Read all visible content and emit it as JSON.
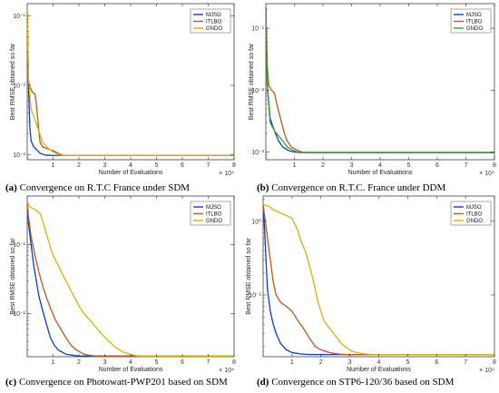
{
  "chart_data": [
    {
      "type": "line",
      "caption_tag": "(a)",
      "caption": "Convergence on R.T.C France under SDM",
      "xlabel": "Number of Evaluations",
      "ylabel": "Best RMSE obtained so far",
      "x_multiplier": "× 10⁴",
      "xlim": [
        0,
        8
      ],
      "xticks": [
        "1",
        "2",
        "3",
        "4",
        "5",
        "6",
        "7",
        "8"
      ],
      "ylim": [
        0.00085,
        0.15
      ],
      "yscale": "log",
      "yticks": [
        {
          "value": 0.001,
          "label": "10⁻³"
        },
        {
          "value": 0.01,
          "label": "10⁻²"
        },
        {
          "value": 0.1,
          "label": "10⁻¹"
        }
      ],
      "grid": false,
      "legend_position": "top-right",
      "series": [
        {
          "name": "MJSO",
          "color": "#0c3ccc",
          "points": [
            [
              0,
              0.12
            ],
            [
              0.05,
              0.01
            ],
            [
              0.1,
              0.0025
            ],
            [
              0.15,
              0.0016
            ],
            [
              0.25,
              0.0013
            ],
            [
              0.35,
              0.0012
            ],
            [
              0.5,
              0.00105
            ],
            [
              0.7,
              0.00099
            ],
            [
              1.0,
              0.00098
            ],
            [
              8,
              0.00098
            ]
          ]
        },
        {
          "name": "ITLBO",
          "color": "#b55a1c",
          "points": [
            [
              0,
              0.12
            ],
            [
              0.05,
              0.012
            ],
            [
              0.1,
              0.0095
            ],
            [
              0.2,
              0.008
            ],
            [
              0.3,
              0.0075
            ],
            [
              0.35,
              0.0055
            ],
            [
              0.4,
              0.0035
            ],
            [
              0.45,
              0.0022
            ],
            [
              0.5,
              0.0015
            ],
            [
              0.6,
              0.0013
            ],
            [
              0.7,
              0.00125
            ],
            [
              0.85,
              0.0012
            ],
            [
              1.0,
              0.00115
            ],
            [
              1.2,
              0.00105
            ],
            [
              1.4,
              0.00098
            ],
            [
              8,
              0.00098
            ]
          ]
        },
        {
          "name": "GNDO",
          "color": "#d6b00d",
          "points": [
            [
              0,
              0.12
            ],
            [
              0.05,
              0.012
            ],
            [
              0.15,
              0.0045
            ],
            [
              0.3,
              0.0032
            ],
            [
              0.45,
              0.0022
            ],
            [
              0.6,
              0.0015
            ],
            [
              0.8,
              0.00125
            ],
            [
              1.0,
              0.0011
            ],
            [
              1.3,
              0.00098
            ],
            [
              8,
              0.00098
            ]
          ]
        }
      ]
    },
    {
      "type": "line",
      "caption_tag": "(b)",
      "caption": "Convergence on R.T.C. France under DDM",
      "xlabel": "Number of Evaluations",
      "ylabel": "Best RMSE obtained so far",
      "x_multiplier": "× 10⁴",
      "xlim": [
        0,
        8
      ],
      "xticks": [
        "1",
        "2",
        "3",
        "4",
        "5",
        "6",
        "7",
        "8"
      ],
      "ylim": [
        0.00075,
        0.25
      ],
      "yscale": "log",
      "yticks": [
        {
          "value": 0.001,
          "label": "10⁻³"
        },
        {
          "value": 0.01,
          "label": "10⁻²"
        },
        {
          "value": 0.1,
          "label": "10⁻¹"
        }
      ],
      "grid": false,
      "legend_position": "top-right",
      "series": [
        {
          "name": "MJSO",
          "color": "#0c3ccc",
          "points": [
            [
              0,
              0.22
            ],
            [
              0.05,
              0.012
            ],
            [
              0.15,
              0.0035
            ],
            [
              0.3,
              0.0022
            ],
            [
              0.45,
              0.0015
            ],
            [
              0.6,
              0.0012
            ],
            [
              0.8,
              0.00105
            ],
            [
              1.0,
              0.001
            ],
            [
              1.2,
              0.00098
            ],
            [
              8,
              0.00098
            ]
          ]
        },
        {
          "name": "ITLBO",
          "color": "#b55a1c",
          "points": [
            [
              0,
              0.22
            ],
            [
              0.05,
              0.025
            ],
            [
              0.1,
              0.012
            ],
            [
              0.2,
              0.01
            ],
            [
              0.3,
              0.009
            ],
            [
              0.35,
              0.007
            ],
            [
              0.45,
              0.0045
            ],
            [
              0.55,
              0.003
            ],
            [
              0.65,
              0.002
            ],
            [
              0.75,
              0.0015
            ],
            [
              0.9,
              0.0012
            ],
            [
              1.05,
              0.0011
            ],
            [
              1.25,
              0.001
            ],
            [
              1.4,
              0.00098
            ],
            [
              8,
              0.00098
            ]
          ]
        },
        {
          "name": "GNDO",
          "color": "#3b9a2e",
          "points": [
            [
              0,
              0.22
            ],
            [
              0.05,
              0.012
            ],
            [
              0.15,
              0.003
            ],
            [
              0.3,
              0.0022
            ],
            [
              0.45,
              0.0018
            ],
            [
              0.6,
              0.0015
            ],
            [
              0.75,
              0.0012
            ],
            [
              0.9,
              0.0011
            ],
            [
              1.1,
              0.001
            ],
            [
              1.4,
              0.00098
            ],
            [
              8,
              0.00098
            ]
          ]
        }
      ]
    },
    {
      "type": "line",
      "caption_tag": "(c)",
      "caption": "Convergence on Photowatt-PWP201 based on SDM",
      "xlabel": "Number of Evaluations",
      "ylabel": "Best RMSE obtained so far",
      "x_multiplier": "× 10⁴",
      "xlim": [
        0,
        8
      ],
      "xticks": [
        "1",
        "2",
        "3",
        "4",
        "5",
        "6",
        "7",
        "8"
      ],
      "ylim": [
        0.0024,
        0.5
      ],
      "yscale": "log",
      "yticks": [
        {
          "value": 0.01,
          "label": "10⁻²"
        },
        {
          "value": 0.1,
          "label": "10⁻¹"
        }
      ],
      "grid": false,
      "legend_position": "top-right",
      "series": [
        {
          "name": "MJSO",
          "color": "#0c3ccc",
          "points": [
            [
              0,
              0.4
            ],
            [
              0.05,
              0.2
            ],
            [
              0.15,
              0.1
            ],
            [
              0.25,
              0.05
            ],
            [
              0.35,
              0.03
            ],
            [
              0.45,
              0.018
            ],
            [
              0.6,
              0.011
            ],
            [
              0.75,
              0.007
            ],
            [
              0.9,
              0.0045
            ],
            [
              1.05,
              0.0035
            ],
            [
              1.2,
              0.003
            ],
            [
              1.5,
              0.0026
            ],
            [
              2.0,
              0.00245
            ],
            [
              8,
              0.00245
            ]
          ]
        },
        {
          "name": "ITLBO",
          "color": "#b55a1c",
          "points": [
            [
              0,
              0.4
            ],
            [
              0.05,
              0.25
            ],
            [
              0.15,
              0.13
            ],
            [
              0.3,
              0.07
            ],
            [
              0.45,
              0.04
            ],
            [
              0.6,
              0.025
            ],
            [
              0.75,
              0.017
            ],
            [
              0.9,
              0.012
            ],
            [
              1.1,
              0.008
            ],
            [
              1.3,
              0.006
            ],
            [
              1.5,
              0.0045
            ],
            [
              1.7,
              0.0035
            ],
            [
              1.9,
              0.003
            ],
            [
              2.2,
              0.0026
            ],
            [
              2.6,
              0.00245
            ],
            [
              8,
              0.00245
            ]
          ]
        },
        {
          "name": "GNDO",
          "color": "#d6b00d",
          "points": [
            [
              0,
              0.4
            ],
            [
              0.1,
              0.35
            ],
            [
              0.3,
              0.32
            ],
            [
              0.5,
              0.28
            ],
            [
              0.6,
              0.22
            ],
            [
              0.7,
              0.16
            ],
            [
              0.8,
              0.12
            ],
            [
              0.9,
              0.09
            ],
            [
              1.0,
              0.07
            ],
            [
              1.2,
              0.05
            ],
            [
              1.4,
              0.035
            ],
            [
              1.6,
              0.025
            ],
            [
              1.8,
              0.018
            ],
            [
              2.0,
              0.013
            ],
            [
              2.2,
              0.01
            ],
            [
              2.5,
              0.0075
            ],
            [
              2.8,
              0.0055
            ],
            [
              3.1,
              0.0042
            ],
            [
              3.4,
              0.0033
            ],
            [
              3.7,
              0.0028
            ],
            [
              4.0,
              0.0026
            ],
            [
              4.3,
              0.00245
            ],
            [
              8,
              0.00245
            ]
          ]
        }
      ]
    },
    {
      "type": "line",
      "caption_tag": "(d)",
      "caption": "Convergence on STP6-120/36 based on SDM",
      "xlabel": "Number of Evaluations",
      "ylabel": "Best RMSE obtained so far",
      "x_multiplier": "× 10⁴",
      "xlim": [
        0,
        8
      ],
      "xticks": [
        "1",
        "2",
        "3",
        "4",
        "5",
        "6",
        "7",
        "8"
      ],
      "ylim": [
        0.0145,
        2.2
      ],
      "yscale": "log",
      "yticks": [
        {
          "value": 0.1,
          "label": "10⁻¹"
        },
        {
          "value": 1,
          "label": "10⁰"
        }
      ],
      "grid": false,
      "legend_position": "top-right",
      "series": [
        {
          "name": "MJSO",
          "color": "#0c3ccc",
          "points": [
            [
              0,
              1.7
            ],
            [
              0.05,
              0.8
            ],
            [
              0.1,
              0.3
            ],
            [
              0.15,
              0.12
            ],
            [
              0.25,
              0.06
            ],
            [
              0.35,
              0.04
            ],
            [
              0.45,
              0.03
            ],
            [
              0.6,
              0.022
            ],
            [
              0.8,
              0.018
            ],
            [
              1.0,
              0.0165
            ],
            [
              1.3,
              0.0158
            ],
            [
              1.6,
              0.0155
            ],
            [
              8,
              0.0155
            ]
          ]
        },
        {
          "name": "ITLBO",
          "color": "#b55a1c",
          "points": [
            [
              0,
              1.7
            ],
            [
              0.05,
              1.2
            ],
            [
              0.15,
              0.6
            ],
            [
              0.25,
              0.3
            ],
            [
              0.35,
              0.15
            ],
            [
              0.45,
              0.1
            ],
            [
              0.6,
              0.08
            ],
            [
              0.8,
              0.07
            ],
            [
              1.0,
              0.06
            ],
            [
              1.2,
              0.045
            ],
            [
              1.4,
              0.035
            ],
            [
              1.6,
              0.026
            ],
            [
              1.8,
              0.02
            ],
            [
              2.0,
              0.018
            ],
            [
              2.3,
              0.0165
            ],
            [
              2.6,
              0.0158
            ],
            [
              2.9,
              0.0155
            ],
            [
              8,
              0.0155
            ]
          ]
        },
        {
          "name": "GNDO",
          "color": "#d6b00d",
          "points": [
            [
              0,
              1.7
            ],
            [
              0.2,
              1.6
            ],
            [
              0.4,
              1.4
            ],
            [
              0.6,
              1.3
            ],
            [
              0.8,
              1.2
            ],
            [
              1.0,
              1.1
            ],
            [
              1.1,
              0.9
            ],
            [
              1.2,
              0.75
            ],
            [
              1.3,
              0.55
            ],
            [
              1.4,
              0.45
            ],
            [
              1.5,
              0.35
            ],
            [
              1.6,
              0.25
            ],
            [
              1.7,
              0.18
            ],
            [
              1.8,
              0.12
            ],
            [
              1.9,
              0.08
            ],
            [
              2.0,
              0.06
            ],
            [
              2.1,
              0.045
            ],
            [
              2.3,
              0.035
            ],
            [
              2.5,
              0.028
            ],
            [
              2.7,
              0.022
            ],
            [
              2.9,
              0.019
            ],
            [
              3.1,
              0.017
            ],
            [
              3.4,
              0.016
            ],
            [
              3.8,
              0.0155
            ],
            [
              8,
              0.0155
            ]
          ]
        }
      ]
    }
  ]
}
